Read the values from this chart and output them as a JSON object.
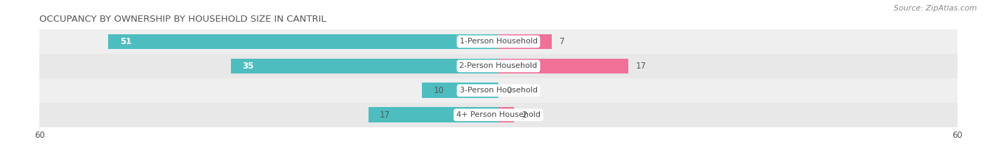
{
  "title": "OCCUPANCY BY OWNERSHIP BY HOUSEHOLD SIZE IN CANTRIL",
  "source": "Source: ZipAtlas.com",
  "categories": [
    "1-Person Household",
    "2-Person Household",
    "3-Person Household",
    "4+ Person Household"
  ],
  "owner_values": [
    51,
    35,
    10,
    17
  ],
  "renter_values": [
    7,
    17,
    0,
    2
  ],
  "owner_color": "#4DBDC0",
  "renter_color": "#F07098",
  "row_colors": [
    "#EFEFEF",
    "#E8E8E8",
    "#EFEFEF",
    "#E8E8E8"
  ],
  "axis_limit": 60,
  "bar_height": 0.62,
  "title_fontsize": 9.5,
  "source_fontsize": 8,
  "value_fontsize": 8.5,
  "label_fontsize": 8,
  "tick_fontsize": 8.5,
  "legend_fontsize": 8.5
}
